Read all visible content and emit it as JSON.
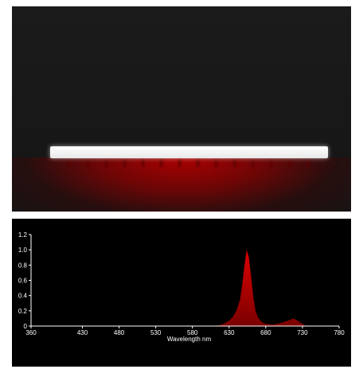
{
  "colors": {
    "panel_bg": "#000000",
    "axis": "#ffffff",
    "spectrum": "#e00000",
    "photo_bg": "#181818",
    "glow": "#b00000"
  },
  "chart_data": {
    "type": "area",
    "xlabel": "Wavelength  nm",
    "ylabel": "",
    "xlim": [
      360,
      780
    ],
    "ylim": [
      0,
      1.2
    ],
    "x_ticks": [
      360,
      430,
      480,
      530,
      580,
      630,
      680,
      730,
      780
    ],
    "y_ticks": [
      0,
      0.2,
      0.4,
      0.6,
      0.8,
      1.0,
      1.2
    ],
    "y_tick_labels": [
      "0",
      "0.2",
      "0.4",
      "0.6",
      "0.8",
      "1.0",
      "1.2"
    ],
    "x": [
      610,
      620,
      630,
      635,
      640,
      645,
      648,
      651,
      654,
      657,
      660,
      663,
      666,
      670,
      675,
      680,
      690,
      700,
      710,
      718,
      725,
      735
    ],
    "y": [
      0,
      0.02,
      0.07,
      0.12,
      0.2,
      0.35,
      0.55,
      0.8,
      1.0,
      0.9,
      0.65,
      0.38,
      0.2,
      0.1,
      0.05,
      0.03,
      0.02,
      0.04,
      0.07,
      0.1,
      0.06,
      0
    ]
  }
}
